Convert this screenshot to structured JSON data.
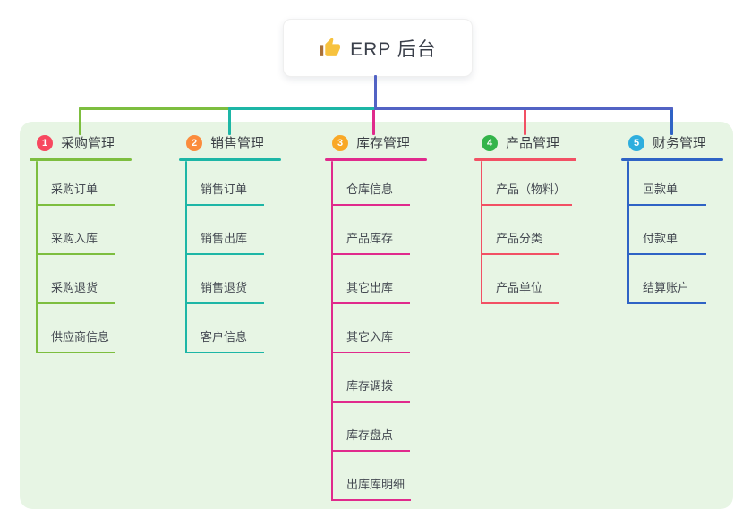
{
  "root": {
    "title": "ERP 后台",
    "icon": "thumbs-up-icon",
    "line_color": "#5263c4"
  },
  "panel": {
    "bg_color": "#e7f5e4"
  },
  "branches": [
    {
      "num": "1",
      "label": "采购管理",
      "badge_color": "#f7485f",
      "line_color": "#7dbe3f",
      "items": [
        "采购订单",
        "采购入库",
        "采购退货",
        "供应商信息"
      ]
    },
    {
      "num": "2",
      "label": "销售管理",
      "badge_color": "#fb8c3d",
      "line_color": "#1db6a6",
      "items": [
        "销售订单",
        "销售出库",
        "销售退货",
        "客户信息"
      ]
    },
    {
      "num": "3",
      "label": "库存管理",
      "badge_color": "#f9a826",
      "line_color": "#e02a8c",
      "items": [
        "仓库信息",
        "产品库存",
        "其它出库",
        "其它入库",
        "库存调拨",
        "库存盘点",
        "出库库明细"
      ]
    },
    {
      "num": "4",
      "label": "产品管理",
      "badge_color": "#33b44a",
      "line_color": "#f25064",
      "items": [
        "产品（物料）",
        "产品分类",
        "产品单位"
      ]
    },
    {
      "num": "5",
      "label": "财务管理",
      "badge_color": "#2eaede",
      "line_color": "#2f63c5",
      "items": [
        "回款单",
        "付款单",
        "结算账户"
      ]
    }
  ]
}
